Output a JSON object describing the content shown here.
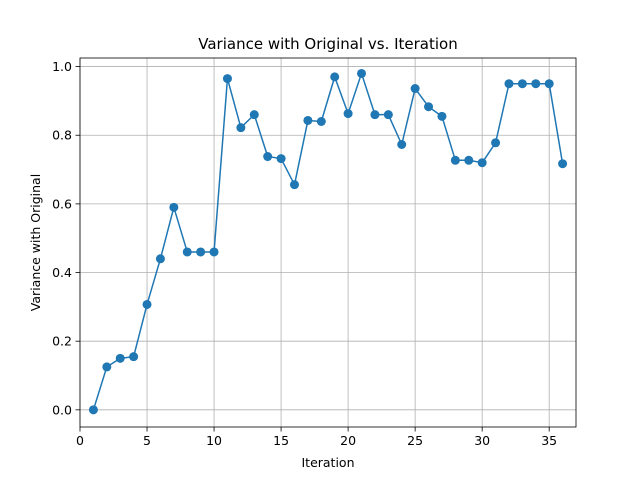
{
  "chart_data": {
    "type": "line",
    "title": "Variance with Original vs. Iteration",
    "xlabel": "Iteration",
    "ylabel": "Variance with Original",
    "xlim": [
      0.0,
      37.0
    ],
    "ylim": [
      -0.05,
      1.025
    ],
    "xticks": [
      0,
      5,
      10,
      15,
      20,
      25,
      30,
      35
    ],
    "yticks": [
      0.0,
      0.2,
      0.4,
      0.6,
      0.8,
      1.0
    ],
    "xtick_labels": [
      "0",
      "5",
      "10",
      "15",
      "20",
      "25",
      "30",
      "35"
    ],
    "ytick_labels": [
      "0.0",
      "0.2",
      "0.4",
      "0.6",
      "0.8",
      "1.0"
    ],
    "grid": true,
    "series": [
      {
        "name": "Variance with Original",
        "color": "#1f77b4",
        "marker": "circle",
        "x": [
          1,
          2,
          3,
          4,
          5,
          6,
          7,
          8,
          9,
          10,
          11,
          12,
          13,
          14,
          15,
          16,
          17,
          18,
          19,
          20,
          21,
          22,
          23,
          24,
          25,
          26,
          27,
          28,
          29,
          30,
          31,
          32,
          33,
          34,
          35,
          36
        ],
        "y": [
          0.0,
          0.125,
          0.15,
          0.155,
          0.307,
          0.44,
          0.59,
          0.46,
          0.46,
          0.46,
          0.965,
          0.822,
          0.86,
          0.738,
          0.732,
          0.656,
          0.843,
          0.84,
          0.97,
          0.863,
          0.98,
          0.86,
          0.86,
          0.773,
          0.936,
          0.883,
          0.855,
          0.727,
          0.727,
          0.72,
          0.778,
          0.95,
          0.95,
          0.95,
          0.95,
          0.717
        ]
      }
    ]
  }
}
